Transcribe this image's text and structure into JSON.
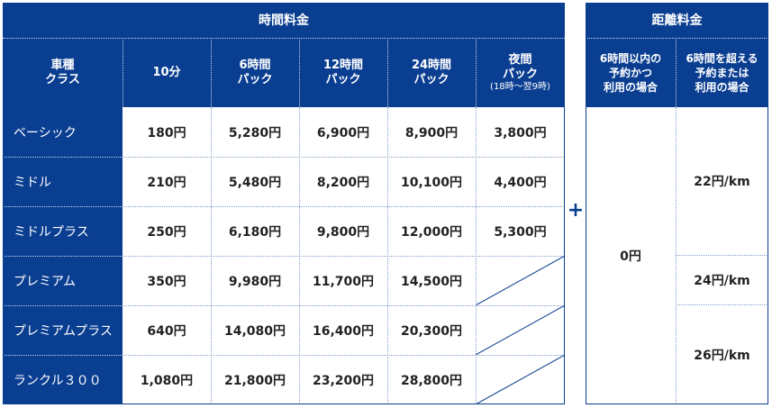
{
  "time_fee": {
    "title": "時間料金",
    "headers": {
      "class": [
        "車種",
        "クラス"
      ],
      "min10": "10分",
      "h6": [
        "6時間",
        "パック"
      ],
      "h12": [
        "12時間",
        "パック"
      ],
      "h24": [
        "24時間",
        "パック"
      ],
      "night": [
        "夜間",
        "パック"
      ],
      "night_note": "(18時～翌9時)"
    },
    "rows": [
      {
        "name": "ベーシック",
        "min10": "180円",
        "h6": "5,280円",
        "h12": "6,900円",
        "h24": "8,900円",
        "night": "3,800円"
      },
      {
        "name": "ミドル",
        "min10": "210円",
        "h6": "5,480円",
        "h12": "8,200円",
        "h24": "10,100円",
        "night": "4,400円"
      },
      {
        "name": "ミドルプラス",
        "min10": "250円",
        "h6": "6,180円",
        "h12": "9,800円",
        "h24": "12,000円",
        "night": "5,300円"
      },
      {
        "name": "プレミアム",
        "min10": "350円",
        "h6": "9,980円",
        "h12": "11,700円",
        "h24": "14,500円",
        "night": ""
      },
      {
        "name": "プレミアムプラス",
        "min10": "640円",
        "h6": "14,080円",
        "h12": "16,400円",
        "h24": "20,300円",
        "night": ""
      },
      {
        "name": "ランクル３００",
        "min10": "1,080円",
        "h6": "21,800円",
        "h12": "23,200円",
        "h24": "28,800円",
        "night": ""
      }
    ]
  },
  "plus_sign": "+",
  "distance_fee": {
    "title": "距離料金",
    "col_within": [
      "6時間以内の",
      "予約かつ",
      "利用の場合"
    ],
    "col_over": [
      "6時間を超える",
      "予約または",
      "利用の場合"
    ],
    "within_value": "0円",
    "over_values": [
      "22円/km",
      "24円/km",
      "26円/km"
    ]
  },
  "colors": {
    "header_blue": "#0a3e91"
  }
}
